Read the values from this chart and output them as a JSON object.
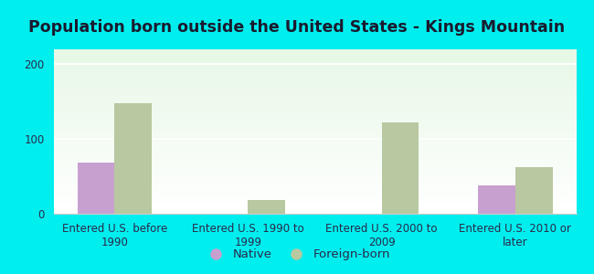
{
  "title": "Population born outside the United States - Kings Mountain",
  "categories": [
    "Entered U.S. before\n1990",
    "Entered U.S. 1990 to\n1999",
    "Entered U.S. 2000 to\n2009",
    "Entered U.S. 2010 or\nlater"
  ],
  "native_values": [
    68,
    0,
    0,
    38
  ],
  "foreign_values": [
    148,
    18,
    122,
    62
  ],
  "native_color": "#c8a0d0",
  "foreign_color": "#b8c8a0",
  "background_color": "#00eeee",
  "ylim": [
    0,
    220
  ],
  "yticks": [
    0,
    100,
    200
  ],
  "bar_width": 0.28,
  "legend_native": "Native",
  "legend_foreign": "Foreign-born",
  "title_fontsize": 12.5,
  "tick_fontsize": 8.5,
  "legend_fontsize": 9.5,
  "title_color": "#1a1a2e",
  "tick_color": "#2a2a4a",
  "grid_color": "#ffffff",
  "spine_color": "#cccccc"
}
